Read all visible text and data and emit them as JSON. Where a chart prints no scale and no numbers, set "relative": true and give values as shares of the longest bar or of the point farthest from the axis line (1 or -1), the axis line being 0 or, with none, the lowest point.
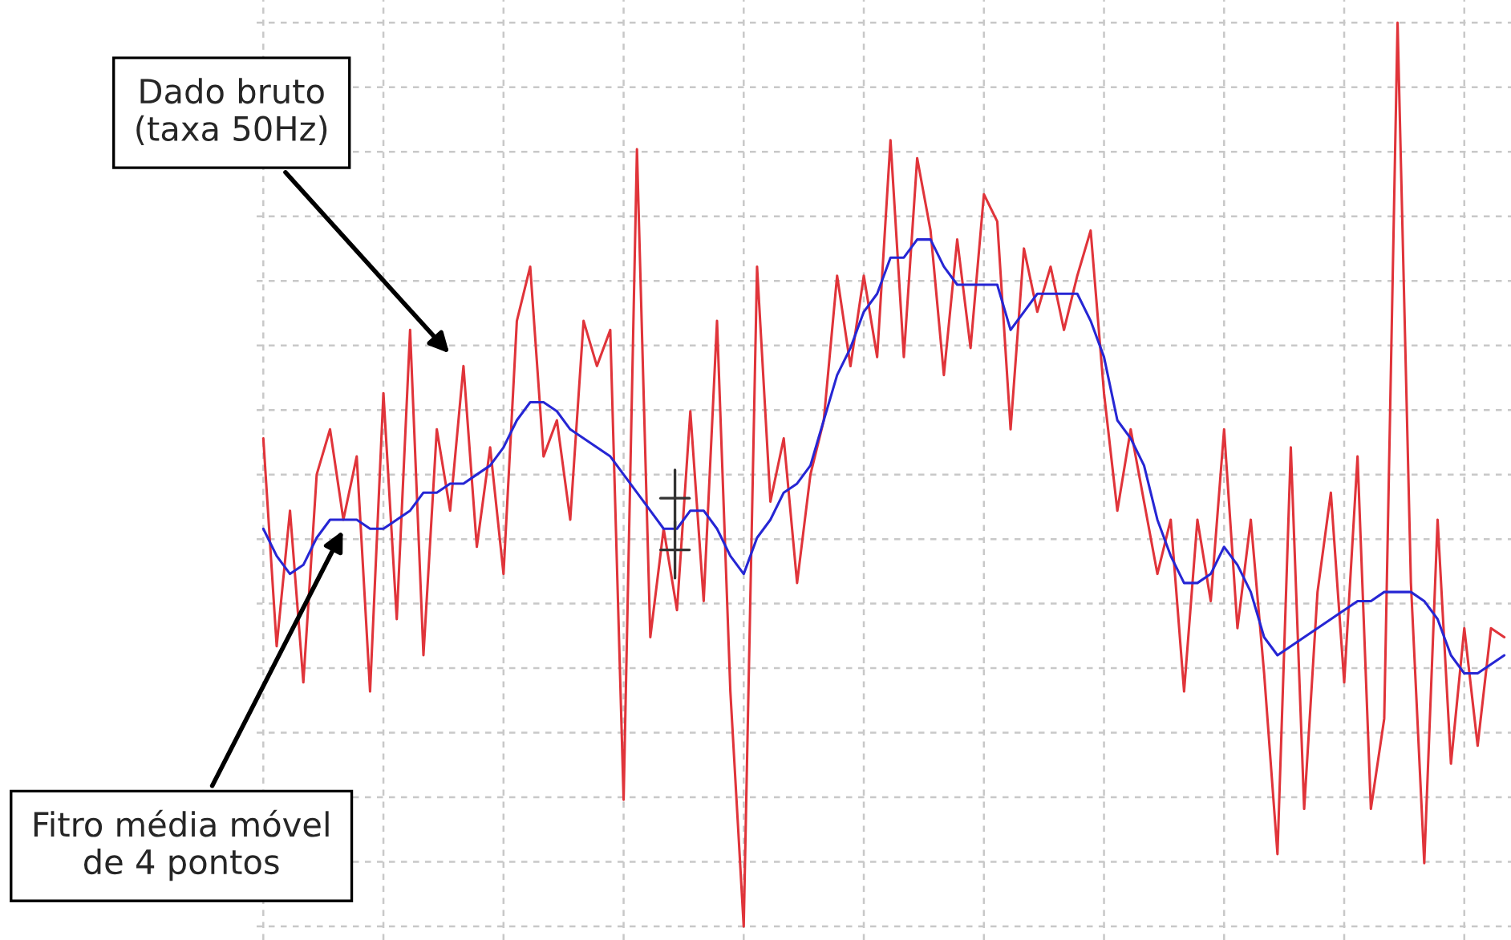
{
  "chart_data": {
    "type": "line",
    "relative": true,
    "grid": true,
    "marker": "none",
    "line_style": "solid",
    "categories": [
      null,
      null,
      null,
      null,
      null,
      null,
      null,
      null,
      null,
      null,
      null,
      null,
      null,
      null,
      null,
      null,
      null,
      null,
      null,
      null,
      null,
      null,
      null,
      null,
      null,
      null,
      null,
      null,
      null,
      null,
      null,
      null,
      null,
      null,
      null,
      null,
      null,
      null,
      null,
      null,
      null,
      null,
      null,
      null,
      null,
      null,
      null,
      null,
      null,
      null,
      null,
      null,
      null,
      null,
      null,
      null,
      null,
      null,
      null,
      null,
      null,
      null,
      null,
      null,
      null,
      null,
      null,
      null,
      null,
      null,
      null,
      null,
      null,
      null,
      null,
      null,
      null,
      null,
      null,
      null,
      null,
      null,
      null,
      null,
      null,
      null,
      null,
      null,
      null,
      null,
      null,
      null,
      null,
      null
    ],
    "series": [
      {
        "color": "#e0343a",
        "values": [
          0.54,
          0.31,
          0.46,
          0.27,
          0.5,
          0.55,
          0.45,
          0.52,
          0.26,
          0.59,
          0.34,
          0.66,
          0.3,
          0.55,
          0.46,
          0.62,
          0.42,
          0.53,
          0.39,
          0.67,
          0.73,
          0.52,
          0.56,
          0.45,
          0.67,
          0.62,
          0.66,
          0.14,
          0.86,
          0.32,
          0.44,
          0.35,
          0.57,
          0.36,
          0.67,
          0.26,
          0.0,
          0.73,
          0.47,
          0.54,
          0.38,
          0.5,
          0.56,
          0.72,
          0.62,
          0.72,
          0.63,
          0.87,
          0.63,
          0.85,
          0.77,
          0.61,
          0.76,
          0.64,
          0.81,
          0.78,
          0.55,
          0.75,
          0.68,
          0.73,
          0.66,
          0.72,
          0.77,
          0.59,
          0.46,
          0.55,
          0.47,
          0.39,
          0.45,
          0.26,
          0.45,
          0.36,
          0.55,
          0.33,
          0.45,
          0.28,
          0.08,
          0.53,
          0.13,
          0.37,
          0.48,
          0.27,
          0.52,
          0.13,
          0.23,
          1.0,
          0.38,
          0.07,
          0.45,
          0.18,
          0.33,
          0.2,
          0.33,
          0.32
        ]
      },
      {
        "color": "#2626d4",
        "values": [
          0.44,
          0.41,
          0.39,
          0.4,
          0.43,
          0.45,
          0.45,
          0.45,
          0.44,
          0.44,
          0.45,
          0.46,
          0.48,
          0.48,
          0.49,
          0.49,
          0.5,
          0.51,
          0.53,
          0.56,
          0.58,
          0.58,
          0.57,
          0.55,
          0.54,
          0.53,
          0.52,
          0.5,
          0.48,
          0.46,
          0.44,
          0.44,
          0.46,
          0.46,
          0.44,
          0.41,
          0.39,
          0.43,
          0.45,
          0.48,
          0.49,
          0.51,
          0.56,
          0.61,
          0.64,
          0.68,
          0.7,
          0.74,
          0.74,
          0.76,
          0.76,
          0.73,
          0.71,
          0.71,
          0.71,
          0.71,
          0.66,
          0.68,
          0.7,
          0.7,
          0.7,
          0.7,
          0.67,
          0.63,
          0.56,
          0.54,
          0.51,
          0.45,
          0.41,
          0.38,
          0.38,
          0.39,
          0.42,
          0.4,
          0.37,
          0.32,
          0.3,
          0.31,
          0.32,
          0.33,
          0.34,
          0.35,
          0.36,
          0.36,
          0.37,
          0.37,
          0.37,
          0.36,
          0.34,
          0.3,
          0.28,
          0.28,
          0.29,
          0.3
        ]
      }
    ],
    "annotations": [
      "Dado bruto\n(taxa 50Hz)",
      "Fitro média móvel\nde 4 pontos"
    ]
  }
}
